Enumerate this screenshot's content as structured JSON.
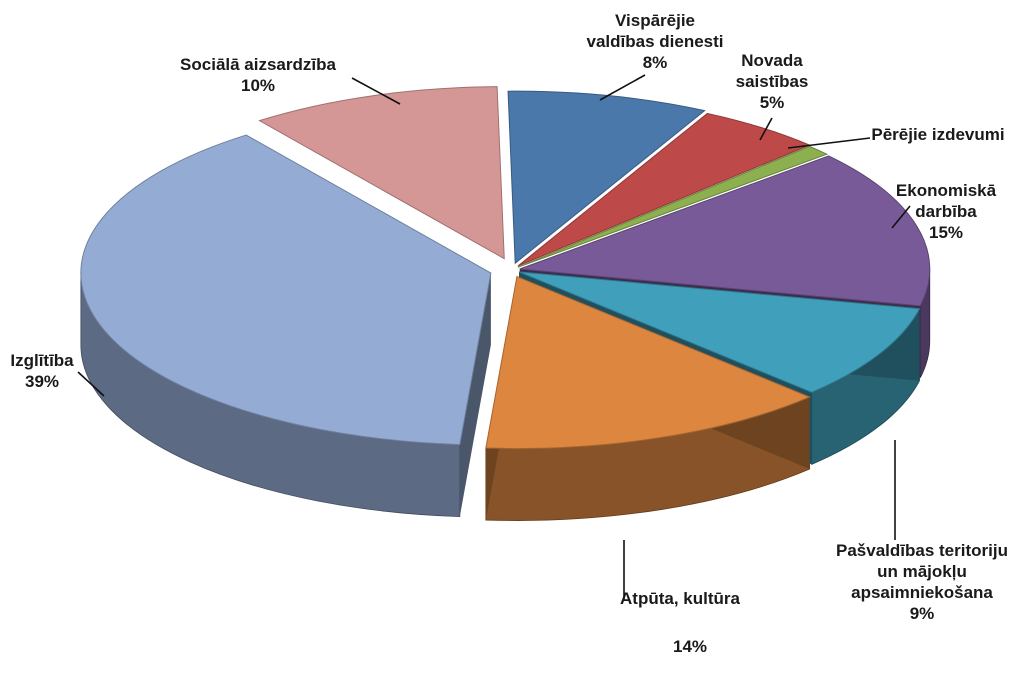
{
  "chart_data": {
    "type": "pie",
    "title": "",
    "legend": "none",
    "slices": [
      {
        "label_lines": [
          "Vispārējie",
          "valdības dienesti"
        ],
        "value": 8,
        "value_label": "8%",
        "color": "#4a78ab"
      },
      {
        "label_lines": [
          "Novada",
          "saistības"
        ],
        "value": 5,
        "value_label": "5%",
        "color": "#bd4a48"
      },
      {
        "label_lines": [
          "Pērējie izdevumi"
        ],
        "value": 1,
        "value_label": "",
        "color": "#8cb04f"
      },
      {
        "label_lines": [
          "Ekonomiskā",
          "darbība"
        ],
        "value": 15,
        "value_label": "15%",
        "color": "#785a99"
      },
      {
        "label_lines": [
          "Pašvaldības teritoriju",
          "un mājokļu",
          "apsaimniekošana"
        ],
        "value": 9,
        "value_label": "9%",
        "color": "#40a0bb"
      },
      {
        "label_lines": [
          "Atpūta, kultūra"
        ],
        "value": 14,
        "value_label": "14%",
        "color": "#dc8640"
      },
      {
        "label_lines": [
          "Izglītība"
        ],
        "value": 39,
        "value_label": "39%",
        "color": "#94abd3"
      },
      {
        "label_lines": [
          "Sociālā aizsardzība"
        ],
        "value": 10,
        "value_label": "10%",
        "color": "#d49796"
      }
    ]
  }
}
